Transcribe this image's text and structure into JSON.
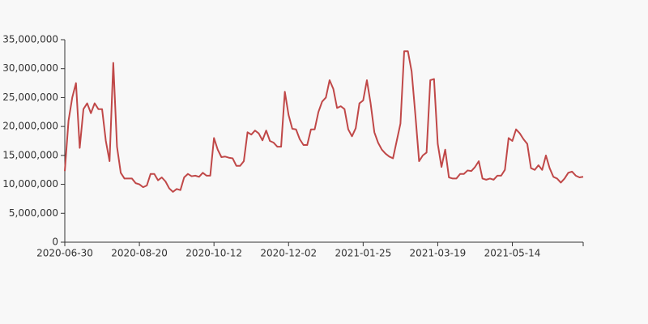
{
  "chart_data": {
    "type": "line",
    "categories": [
      "2020-06-30",
      null,
      null,
      null,
      null,
      null,
      null,
      null,
      null,
      null,
      null,
      null,
      null,
      null,
      null,
      null,
      null,
      null,
      null,
      null,
      "2020-08-20",
      null,
      null,
      null,
      null,
      null,
      null,
      null,
      null,
      null,
      null,
      null,
      null,
      null,
      null,
      null,
      null,
      null,
      null,
      null,
      "2020-10-12",
      null,
      null,
      null,
      null,
      null,
      null,
      null,
      null,
      null,
      null,
      null,
      null,
      null,
      null,
      null,
      null,
      null,
      null,
      null,
      "2020-12-02",
      null,
      null,
      null,
      null,
      null,
      null,
      null,
      null,
      null,
      null,
      null,
      null,
      null,
      null,
      null,
      null,
      null,
      null,
      null,
      "2021-01-25",
      null,
      null,
      null,
      null,
      null,
      null,
      null,
      null,
      null,
      null,
      null,
      null,
      null,
      null,
      null,
      null,
      null,
      null,
      null,
      "2021-03-19",
      null,
      null,
      null,
      null,
      null,
      null,
      null,
      null,
      null,
      null,
      null,
      null,
      null,
      null,
      null,
      null,
      null,
      null,
      null,
      "2021-05-14",
      null,
      null,
      null,
      null,
      null,
      null,
      null,
      null,
      null,
      null,
      null,
      null,
      null,
      null,
      null,
      null,
      null,
      null,
      null
    ],
    "series": [
      {
        "color": "#c04848",
        "values": [
          12300000,
          21000000,
          25000000,
          27500000,
          16300000,
          23000000,
          24000000,
          22300000,
          24000000,
          23000000,
          23000000,
          17500000,
          14000000,
          31000000,
          16500000,
          12000000,
          11000000,
          11000000,
          11000000,
          10200000,
          10000000,
          9500000,
          9800000,
          11800000,
          11800000,
          10700000,
          11200000,
          10500000,
          9300000,
          8700000,
          9200000,
          9000000,
          11200000,
          11800000,
          11400000,
          11500000,
          11300000,
          12000000,
          11500000,
          11500000,
          18000000,
          16000000,
          14700000,
          14800000,
          14600000,
          14500000,
          13200000,
          13200000,
          14000000,
          19000000,
          18600000,
          19300000,
          18800000,
          17600000,
          19300000,
          17500000,
          17200000,
          16500000,
          16500000,
          26000000,
          22000000,
          19600000,
          19500000,
          17800000,
          16800000,
          16800000,
          19500000,
          19500000,
          22500000,
          24300000,
          25000000,
          28000000,
          26500000,
          23200000,
          23500000,
          23000000,
          19500000,
          18300000,
          19700000,
          24000000,
          24500000,
          28000000,
          24000000,
          19000000,
          17200000,
          16000000,
          15300000,
          14800000,
          14500000,
          17500000,
          20500000,
          33000000,
          33000000,
          29500000,
          22000000,
          14000000,
          15000000,
          15500000,
          28000000,
          28200000,
          17000000,
          13000000,
          16000000,
          11200000,
          11000000,
          11000000,
          11800000,
          11800000,
          12400000,
          12300000,
          13000000,
          14000000,
          11000000,
          10800000,
          11000000,
          10800000,
          11500000,
          11500000,
          12500000,
          18000000,
          17500000,
          19500000,
          18800000,
          17800000,
          17000000,
          12800000,
          12500000,
          13300000,
          12500000,
          15000000,
          12800000,
          11300000,
          11000000,
          10300000,
          11000000,
          12000000,
          12200000,
          11500000,
          11200000,
          11300000
        ]
      }
    ],
    "ylim": [
      0,
      35000000
    ],
    "yticks": [
      0,
      {
        "value": 5000000,
        "label": "5,000,000"
      },
      {
        "value": 10000000,
        "label": "10,000,000"
      },
      {
        "value": 15000000,
        "label": "15,000,000"
      },
      {
        "value": 20000000,
        "label": "20,000,000"
      },
      {
        "value": 25000000,
        "label": "25,000,000"
      },
      {
        "value": 30000000,
        "label": "30,000,000"
      },
      {
        "value": 35000000,
        "label": "35,000,000"
      }
    ],
    "grid": false
  }
}
